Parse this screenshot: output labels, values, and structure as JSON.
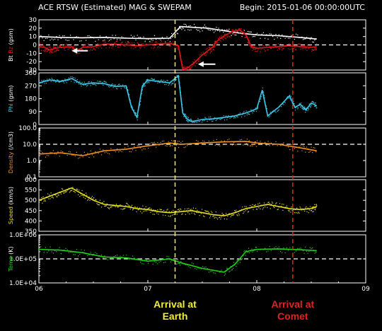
{
  "header": {
    "title": "ACE RTSW (Estimated) MAG & SWEPAM",
    "begin": "Begin: 2015-01-06 00:00:00UTC"
  },
  "colors": {
    "background": "#000000",
    "frame": "#ffffff",
    "earth_line": "#f2ee3a",
    "comet_line": "#e32222",
    "bt": "#ffffff",
    "bz": "#e01818",
    "phi": "#3cc8e6",
    "density": "#f0921e",
    "speed": "#e8e020",
    "temp": "#22d01c"
  },
  "annotations": {
    "earth": {
      "line1": "Arrival at",
      "line2": "Earth",
      "x_day": 7.25
    },
    "comet": {
      "line1": "Arrival at",
      "line2": "Comet",
      "x_day": 8.33
    }
  },
  "chart_data": {
    "type": "line",
    "x_axis": {
      "label": "",
      "range_days": [
        6,
        9
      ],
      "ticks": [
        6,
        7,
        8,
        9
      ],
      "tick_labels": [
        "06",
        "07",
        "08",
        "09"
      ]
    },
    "panels": [
      {
        "id": "mag",
        "ylabel_parts": [
          {
            "text": "Bt",
            "color": "#ffffff"
          },
          {
            "text": " Bz",
            "color": "#e01818"
          },
          {
            "text": " (gsm)",
            "color": "#ffffff"
          }
        ],
        "scale": "linear",
        "ylim": [
          -30,
          30
        ],
        "ticks": [
          30,
          20,
          10,
          0,
          -10,
          -20,
          -30
        ],
        "dashed_at": 0,
        "series": [
          {
            "name": "Bt",
            "color_key": "bt",
            "points": [
              [
                6.0,
                10
              ],
              [
                6.2,
                9
              ],
              [
                6.4,
                8.5
              ],
              [
                6.6,
                9
              ],
              [
                6.8,
                8
              ],
              [
                7.0,
                7.5
              ],
              [
                7.2,
                8
              ],
              [
                7.3,
                22
              ],
              [
                7.4,
                21
              ],
              [
                7.55,
                20
              ],
              [
                7.7,
                17
              ],
              [
                7.85,
                14
              ],
              [
                8.0,
                12
              ],
              [
                8.2,
                11
              ],
              [
                8.4,
                9
              ],
              [
                8.55,
                7
              ]
            ]
          },
          {
            "name": "Bz",
            "color_key": "bz",
            "points": [
              [
                6.0,
                -2
              ],
              [
                6.05,
                -3
              ],
              [
                6.1,
                -6
              ],
              [
                6.15,
                -4
              ],
              [
                6.2,
                -3
              ],
              [
                6.3,
                -2
              ],
              [
                6.35,
                -7
              ],
              [
                6.4,
                -3
              ],
              [
                6.5,
                -2
              ],
              [
                6.6,
                1
              ],
              [
                6.7,
                1
              ],
              [
                6.8,
                0
              ],
              [
                6.9,
                -1
              ],
              [
                7.0,
                0
              ],
              [
                7.1,
                1
              ],
              [
                7.2,
                2
              ],
              [
                7.28,
                -1
              ],
              [
                7.32,
                -30
              ],
              [
                7.36,
                -28
              ],
              [
                7.42,
                -22
              ],
              [
                7.5,
                -12
              ],
              [
                7.56,
                -6
              ],
              [
                7.6,
                -2
              ],
              [
                7.62,
                3
              ],
              [
                7.7,
                11
              ],
              [
                7.78,
                16
              ],
              [
                7.84,
                18
              ],
              [
                7.9,
                12
              ],
              [
                7.95,
                -2
              ],
              [
                8.0,
                -4
              ],
              [
                8.1,
                -3
              ],
              [
                8.2,
                -2
              ],
              [
                8.3,
                -1
              ],
              [
                8.4,
                -2
              ],
              [
                8.5,
                -3
              ],
              [
                8.55,
                -2
              ]
            ]
          }
        ],
        "arrows": [
          {
            "tip_x": 6.3,
            "tip_y": -7,
            "tail_x": 6.45
          },
          {
            "tip_x": 7.46,
            "tip_y": -23,
            "tail_x": 7.62
          }
        ]
      },
      {
        "id": "phi",
        "ylabel_parts": [
          {
            "text": "Phi",
            "color": "#3cc8e6"
          },
          {
            "text": " (gsm)",
            "color": "#ffffff"
          }
        ],
        "scale": "linear",
        "ylim": [
          0,
          360
        ],
        "ticks": [
          360,
          270,
          180,
          90,
          0
        ],
        "series": [
          {
            "name": "Phi",
            "color_key": "phi",
            "points": [
              [
                6.0,
                290
              ],
              [
                6.1,
                310
              ],
              [
                6.2,
                300
              ],
              [
                6.3,
                320
              ],
              [
                6.4,
                280
              ],
              [
                6.5,
                290
              ],
              [
                6.6,
                285
              ],
              [
                6.7,
                265
              ],
              [
                6.8,
                270
              ],
              [
                6.85,
                120
              ],
              [
                6.9,
                50
              ],
              [
                6.95,
                270
              ],
              [
                7.0,
                310
              ],
              [
                7.1,
                300
              ],
              [
                7.2,
                290
              ],
              [
                7.28,
                340
              ],
              [
                7.32,
                80
              ],
              [
                7.36,
                40
              ],
              [
                7.4,
                20
              ],
              [
                7.5,
                35
              ],
              [
                7.6,
                40
              ],
              [
                7.7,
                50
              ],
              [
                7.8,
                60
              ],
              [
                7.9,
                80
              ],
              [
                8.0,
                110
              ],
              [
                8.05,
                240
              ],
              [
                8.1,
                60
              ],
              [
                8.2,
                120
              ],
              [
                8.3,
                200
              ],
              [
                8.35,
                120
              ],
              [
                8.4,
                140
              ],
              [
                8.45,
                100
              ],
              [
                8.5,
                150
              ],
              [
                8.55,
                130
              ]
            ]
          }
        ]
      },
      {
        "id": "density",
        "ylabel_parts": [
          {
            "text": "Density",
            "color": "#f0921e"
          },
          {
            "text": " (/cm3)",
            "color": "#ffffff"
          }
        ],
        "scale": "log",
        "ylim": [
          0.1,
          100
        ],
        "ticks": [
          100,
          10,
          1,
          0.1
        ],
        "tick_labels": [
          "100.0",
          "10.0",
          "1.0",
          "0.1"
        ],
        "dashed_at": 10,
        "series": [
          {
            "name": "Density",
            "color_key": "density",
            "points": [
              [
                6.0,
                2.5
              ],
              [
                6.2,
                3
              ],
              [
                6.4,
                2
              ],
              [
                6.6,
                4
              ],
              [
                6.8,
                5
              ],
              [
                7.0,
                8
              ],
              [
                7.2,
                12
              ],
              [
                7.3,
                10
              ],
              [
                7.5,
                12
              ],
              [
                7.7,
                14
              ],
              [
                7.9,
                15
              ],
              [
                8.0,
                12
              ],
              [
                8.2,
                10
              ],
              [
                8.4,
                6
              ],
              [
                8.55,
                4
              ]
            ]
          }
        ]
      },
      {
        "id": "speed",
        "ylabel_parts": [
          {
            "text": "Speed",
            "color": "#e8e020"
          },
          {
            "text": " (km/s)",
            "color": "#ffffff"
          }
        ],
        "scale": "linear",
        "ylim": [
          350,
          600
        ],
        "ticks": [
          600,
          550,
          500,
          450,
          400,
          350
        ],
        "series": [
          {
            "name": "Speed",
            "color_key": "speed",
            "points": [
              [
                6.0,
                500
              ],
              [
                6.1,
                520
              ],
              [
                6.2,
                540
              ],
              [
                6.3,
                560
              ],
              [
                6.4,
                530
              ],
              [
                6.5,
                500
              ],
              [
                6.6,
                480
              ],
              [
                6.7,
                475
              ],
              [
                6.8,
                470
              ],
              [
                6.9,
                460
              ],
              [
                7.0,
                455
              ],
              [
                7.1,
                445
              ],
              [
                7.2,
                440
              ],
              [
                7.3,
                445
              ],
              [
                7.4,
                450
              ],
              [
                7.5,
                440
              ],
              [
                7.6,
                430
              ],
              [
                7.7,
                425
              ],
              [
                7.8,
                440
              ],
              [
                7.9,
                460
              ],
              [
                8.0,
                470
              ],
              [
                8.1,
                480
              ],
              [
                8.2,
                470
              ],
              [
                8.3,
                460
              ],
              [
                8.4,
                455
              ],
              [
                8.5,
                460
              ],
              [
                8.55,
                470
              ]
            ]
          }
        ]
      },
      {
        "id": "temp",
        "ylabel_parts": [
          {
            "text": "Temp",
            "color": "#22d01c"
          },
          {
            "text": " (K)",
            "color": "#ffffff"
          }
        ],
        "scale": "log",
        "ylim": [
          10000,
          1000000
        ],
        "ticks": [
          1000000,
          100000,
          10000
        ],
        "tick_labels": [
          "1.0E+06",
          "1.0E+05",
          "1.0E+04"
        ],
        "dashed_at": 100000,
        "series": [
          {
            "name": "Temp",
            "color_key": "temp",
            "points": [
              [
                6.0,
                250000
              ],
              [
                6.2,
                230000
              ],
              [
                6.4,
                180000
              ],
              [
                6.6,
                120000
              ],
              [
                6.8,
                110000
              ],
              [
                7.0,
                80000
              ],
              [
                7.2,
                100000
              ],
              [
                7.3,
                70000
              ],
              [
                7.5,
                40000
              ],
              [
                7.7,
                28000
              ],
              [
                7.8,
                60000
              ],
              [
                7.9,
                200000
              ],
              [
                8.0,
                250000
              ],
              [
                8.2,
                260000
              ],
              [
                8.4,
                240000
              ],
              [
                8.55,
                220000
              ]
            ]
          }
        ]
      }
    ]
  }
}
